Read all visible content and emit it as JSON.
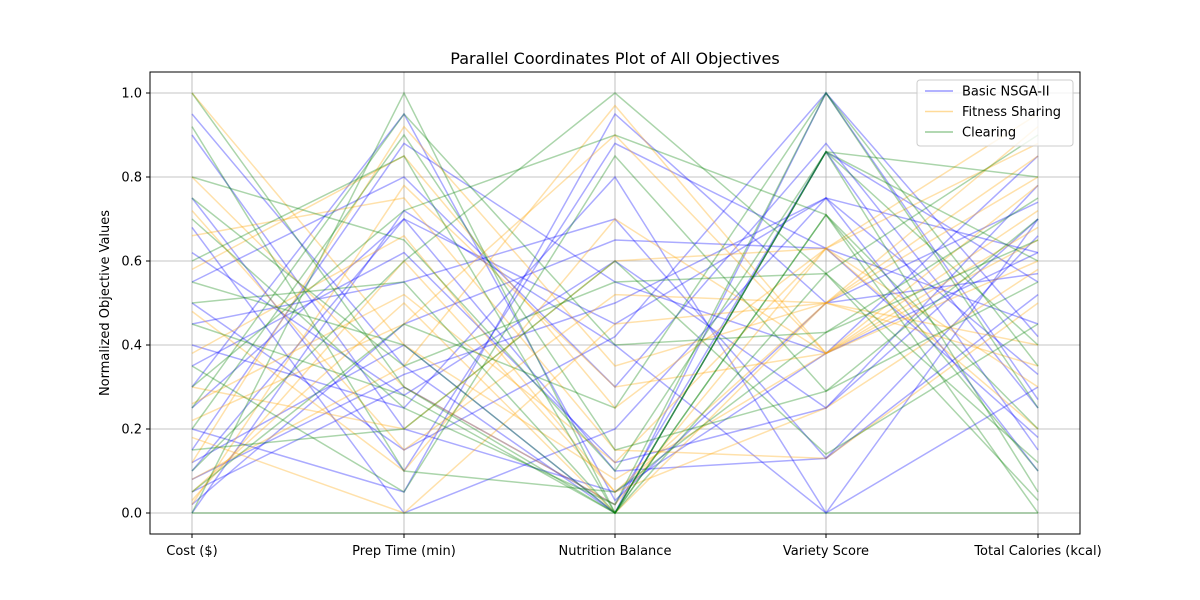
{
  "chart_data": {
    "type": "line",
    "title": "Parallel Coordinates Plot of All Objectives",
    "xlabel": "",
    "ylabel": "Normalized Objective Values",
    "categories": [
      "Cost ($)",
      "Prep Time (min)",
      "Nutrition Balance",
      "Variety Score",
      "Total Calories (kcal)"
    ],
    "ylim": [
      -0.05,
      1.05
    ],
    "yticks": [
      0.0,
      0.2,
      0.4,
      0.6,
      0.8,
      1.0
    ],
    "ytick_labels": [
      "0.0",
      "0.2",
      "0.4",
      "0.6",
      "0.8",
      "1.0"
    ],
    "grid": true,
    "legend_position": "top-right",
    "series": [
      {
        "name": "Basic NSGA-II",
        "color": "#0000ff",
        "lines": [
          [
            0.1,
            0.7,
            0.45,
            0.75,
            0.62
          ],
          [
            0.05,
            0.3,
            0.02,
            0.86,
            0.55
          ],
          [
            0.62,
            0.28,
            0.6,
            0.25,
            0.7
          ],
          [
            0.0,
            0.72,
            0.4,
            0.0,
            0.3
          ],
          [
            0.75,
            0.1,
            0.88,
            0.63,
            0.18
          ],
          [
            0.3,
            0.95,
            0.03,
            0.5,
            0.74
          ],
          [
            0.12,
            0.4,
            0.0,
            1.0,
            0.42
          ],
          [
            0.45,
            0.55,
            0.7,
            0.13,
            0.66
          ],
          [
            0.9,
            0.2,
            0.05,
            0.38,
            0.85
          ],
          [
            0.08,
            0.33,
            0.5,
            0.75,
            0.1
          ],
          [
            0.55,
            0.8,
            0.3,
            0.88,
            0.25
          ],
          [
            0.2,
            0.05,
            0.95,
            0.5,
            0.57
          ],
          [
            0.35,
            0.62,
            0.12,
            0.25,
            0.78
          ],
          [
            0.02,
            0.45,
            0.65,
            0.63,
            0.45
          ],
          [
            0.68,
            0.0,
            0.2,
            0.75,
            0.33
          ],
          [
            0.15,
            0.88,
            0.55,
            0.38,
            0.62
          ],
          [
            0.95,
            0.35,
            0.0,
            0.86,
            0.15
          ],
          [
            0.4,
            0.25,
            0.8,
            0.0,
            0.7
          ],
          [
            0.25,
            0.7,
            0.1,
            0.13,
            0.52
          ],
          [
            0.5,
            0.15,
            0.42,
            1.0,
            0.27
          ]
        ]
      },
      {
        "name": "Fitness Sharing",
        "color": "#ffa500",
        "lines": [
          [
            0.03,
            0.6,
            0.05,
            0.5,
            0.8
          ],
          [
            0.22,
            0.45,
            0.9,
            0.38,
            0.6
          ],
          [
            0.8,
            0.3,
            0.02,
            0.63,
            0.95
          ],
          [
            0.12,
            0.92,
            0.35,
            0.5,
            0.4
          ],
          [
            0.48,
            0.1,
            0.7,
            0.38,
            0.72
          ],
          [
            0.05,
            0.5,
            0.0,
            0.5,
            0.85
          ],
          [
            0.66,
            0.75,
            0.15,
            0.13,
            0.5
          ],
          [
            0.3,
            0.2,
            0.6,
            0.63,
            0.3
          ],
          [
            1.0,
            0.4,
            0.08,
            0.38,
            0.65
          ],
          [
            0.18,
            0.0,
            0.45,
            0.5,
            0.92
          ],
          [
            0.58,
            0.85,
            0.25,
            0.63,
            0.2
          ],
          [
            0.08,
            0.35,
            0.97,
            0.38,
            0.78
          ],
          [
            0.38,
            0.66,
            0.05,
            0.25,
            0.58
          ],
          [
            0.72,
            0.15,
            0.52,
            0.5,
            0.35
          ],
          [
            0.26,
            0.52,
            0.12,
            0.63,
            0.88
          ],
          [
            0.02,
            0.78,
            0.3,
            0.38,
            0.68
          ]
        ]
      },
      {
        "name": "Clearing",
        "color": "#008000",
        "lines": [
          [
            1.0,
            0.3,
            0.0,
            0.86,
            0.05
          ],
          [
            0.0,
            1.0,
            0.0,
            0.71,
            0.0
          ],
          [
            0.0,
            0.0,
            0.0,
            0.0,
            0.0
          ],
          [
            0.45,
            0.28,
            0.0,
            0.86,
            0.6
          ],
          [
            0.1,
            0.6,
            1.0,
            0.57,
            0.12
          ],
          [
            0.7,
            0.25,
            0.02,
            1.0,
            0.35
          ],
          [
            0.25,
            0.95,
            0.4,
            0.43,
            0.75
          ],
          [
            0.55,
            0.4,
            0.0,
            0.71,
            0.2
          ],
          [
            0.35,
            0.05,
            0.85,
            0.29,
            0.55
          ],
          [
            0.8,
            0.65,
            0.1,
            0.86,
            0.8
          ],
          [
            0.15,
            0.2,
            0.6,
            0.14,
            0.45
          ],
          [
            0.6,
            0.85,
            0.0,
            0.57,
            0.9
          ],
          [
            0.05,
            0.45,
            0.25,
            1.0,
            0.25
          ],
          [
            0.92,
            0.1,
            0.05,
            0.43,
            0.65
          ],
          [
            0.3,
            0.72,
            0.9,
            0.71,
            0.1
          ],
          [
            0.5,
            0.55,
            0.0,
            0.86,
            0.4
          ],
          [
            0.2,
            0.9,
            0.15,
            0.29,
            0.7
          ],
          [
            0.75,
            0.35,
            0.55,
            0.57,
            0.03
          ]
        ]
      }
    ]
  }
}
